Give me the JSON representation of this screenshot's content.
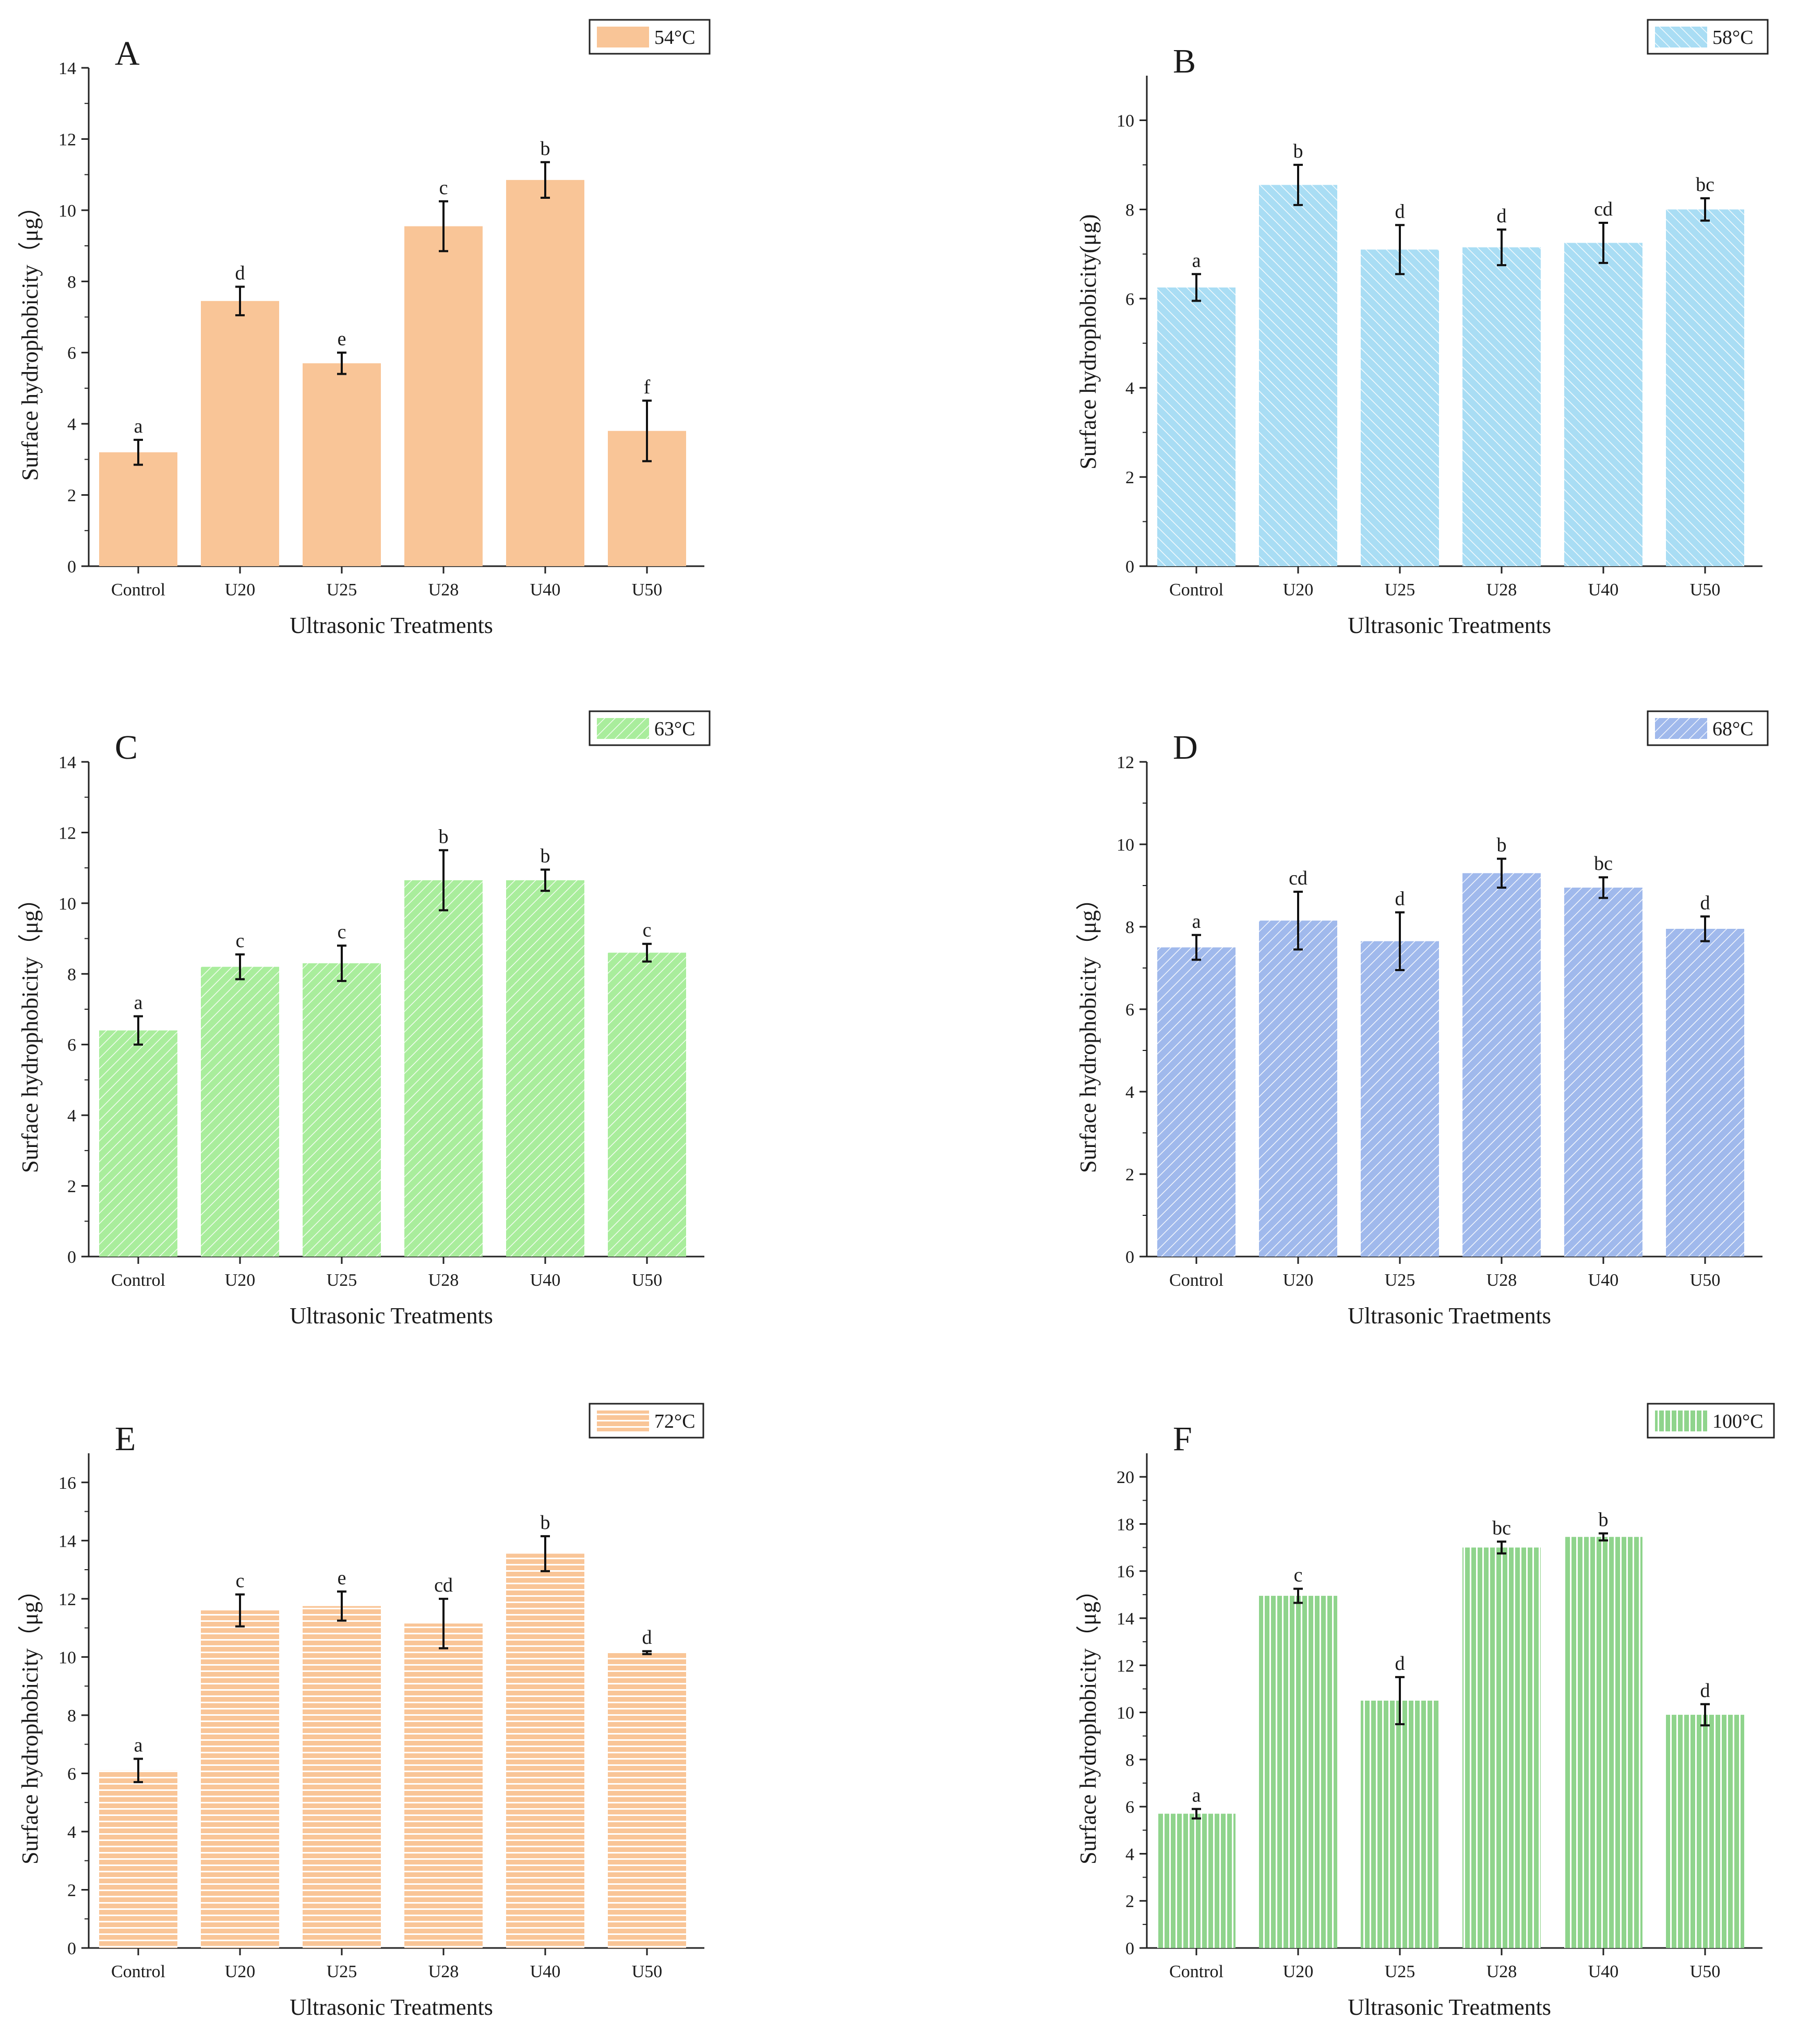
{
  "figure": {
    "panels": [
      {
        "letter": "A",
        "legend": "54°C"
      },
      {
        "letter": "B",
        "legend": "58°C"
      },
      {
        "letter": "C",
        "legend": "63°C"
      },
      {
        "letter": "D",
        "legend": "68°C"
      },
      {
        "letter": "E",
        "legend": "72°C"
      },
      {
        "letter": "F",
        "legend": "100°C"
      }
    ]
  },
  "chart_data": [
    {
      "type": "bar",
      "panel": "A",
      "legend": "54°C",
      "color": "#f9c597",
      "pattern": "solid",
      "categories": [
        "Control",
        "U20",
        "U25",
        "U28",
        "U40",
        "U50"
      ],
      "values": [
        3.2,
        7.45,
        5.7,
        9.55,
        10.85,
        3.8
      ],
      "errors": [
        0.35,
        0.4,
        0.3,
        0.7,
        0.5,
        0.85
      ],
      "labels": [
        "a",
        "d",
        "e",
        "c",
        "b",
        "f"
      ],
      "xlabel": "Ultrasonic Treatments",
      "ylabel": "Surface hydrophobicity（μg）",
      "ylim": [
        0,
        14
      ],
      "yticks": [
        0,
        2,
        4,
        6,
        8,
        10,
        12,
        14
      ]
    },
    {
      "type": "bar",
      "panel": "B",
      "legend": "58°C",
      "color": "#a9ddf4",
      "pattern": "diag-back",
      "categories": [
        "Control",
        "U20",
        "U25",
        "U28",
        "U40",
        "U50"
      ],
      "values": [
        6.25,
        8.55,
        7.1,
        7.15,
        7.25,
        8.0
      ],
      "errors": [
        0.3,
        0.45,
        0.55,
        0.4,
        0.45,
        0.25
      ],
      "labels": [
        "a",
        "b",
        "d",
        "d",
        "cd",
        "bc"
      ],
      "xlabel": "Ultrasonic Treatments",
      "ylabel": "Surface hydrophobicity(μg)",
      "ylim": [
        0,
        11
      ],
      "yticks": [
        0,
        2,
        4,
        6,
        8,
        10
      ]
    },
    {
      "type": "bar",
      "panel": "C",
      "legend": "63°C",
      "color": "#a9ed9c",
      "pattern": "diag-fwd",
      "categories": [
        "Control",
        "U20",
        "U25",
        "U28",
        "U40",
        "U50"
      ],
      "values": [
        6.4,
        8.2,
        8.3,
        10.65,
        10.65,
        8.6
      ],
      "errors": [
        0.4,
        0.35,
        0.5,
        0.85,
        0.3,
        0.25
      ],
      "labels": [
        "a",
        "c",
        "c",
        "b",
        "b",
        "c"
      ],
      "xlabel": "Ultrasonic Treatments",
      "ylabel": "Surface hydrophobicity（μg）",
      "ylim": [
        0,
        14
      ],
      "yticks": [
        0,
        2,
        4,
        6,
        8,
        10,
        12,
        14
      ]
    },
    {
      "type": "bar",
      "panel": "D",
      "legend": "68°C",
      "color": "#a0b9ec",
      "pattern": "diag-fwd",
      "categories": [
        "Control",
        "U20",
        "U25",
        "U28",
        "U40",
        "U50"
      ],
      "values": [
        7.5,
        8.15,
        7.65,
        9.3,
        8.95,
        7.95
      ],
      "errors": [
        0.3,
        0.7,
        0.7,
        0.35,
        0.25,
        0.3
      ],
      "labels": [
        "a",
        "cd",
        "d",
        "b",
        "bc",
        "d"
      ],
      "xlabel": "Ultrasonic Traetments",
      "ylabel": "Surface hydrophobicity（μg）",
      "ylim": [
        0,
        12
      ],
      "yticks": [
        0,
        2,
        4,
        6,
        8,
        10,
        12
      ]
    },
    {
      "type": "bar",
      "panel": "E",
      "legend": "72°C",
      "color": "#f9c597",
      "pattern": "horizontal",
      "categories": [
        "Control",
        "U20",
        "U25",
        "U28",
        "U40",
        "U50"
      ],
      "values": [
        6.1,
        11.6,
        11.75,
        11.15,
        13.55,
        10.15
      ],
      "errors": [
        0.4,
        0.55,
        0.5,
        0.85,
        0.6,
        0.05
      ],
      "labels": [
        "a",
        "c",
        "e",
        "cd",
        "b",
        "d"
      ],
      "xlabel": "Ultrasonic Treatments",
      "ylabel": "Surface hydrophobicity（μg）",
      "ylim": [
        0,
        17
      ],
      "yticks": [
        0,
        2,
        4,
        6,
        8,
        10,
        12,
        14,
        16
      ]
    },
    {
      "type": "bar",
      "panel": "F",
      "legend": "100°C",
      "color": "#8fd48c",
      "pattern": "vertical",
      "categories": [
        "Control",
        "U20",
        "U25",
        "U28",
        "U40",
        "U50"
      ],
      "values": [
        5.7,
        14.95,
        10.5,
        17.0,
        17.45,
        9.9
      ],
      "errors": [
        0.2,
        0.3,
        1.0,
        0.25,
        0.15,
        0.45
      ],
      "labels": [
        "a",
        "c",
        "d",
        "bc",
        "b",
        "d"
      ],
      "xlabel": "Ultrasonic Treatments",
      "ylabel": "Surface hydrophobicity（μg）",
      "ylim": [
        0,
        21
      ],
      "yticks": [
        0,
        2,
        4,
        6,
        8,
        10,
        12,
        14,
        16,
        18,
        20
      ]
    }
  ]
}
